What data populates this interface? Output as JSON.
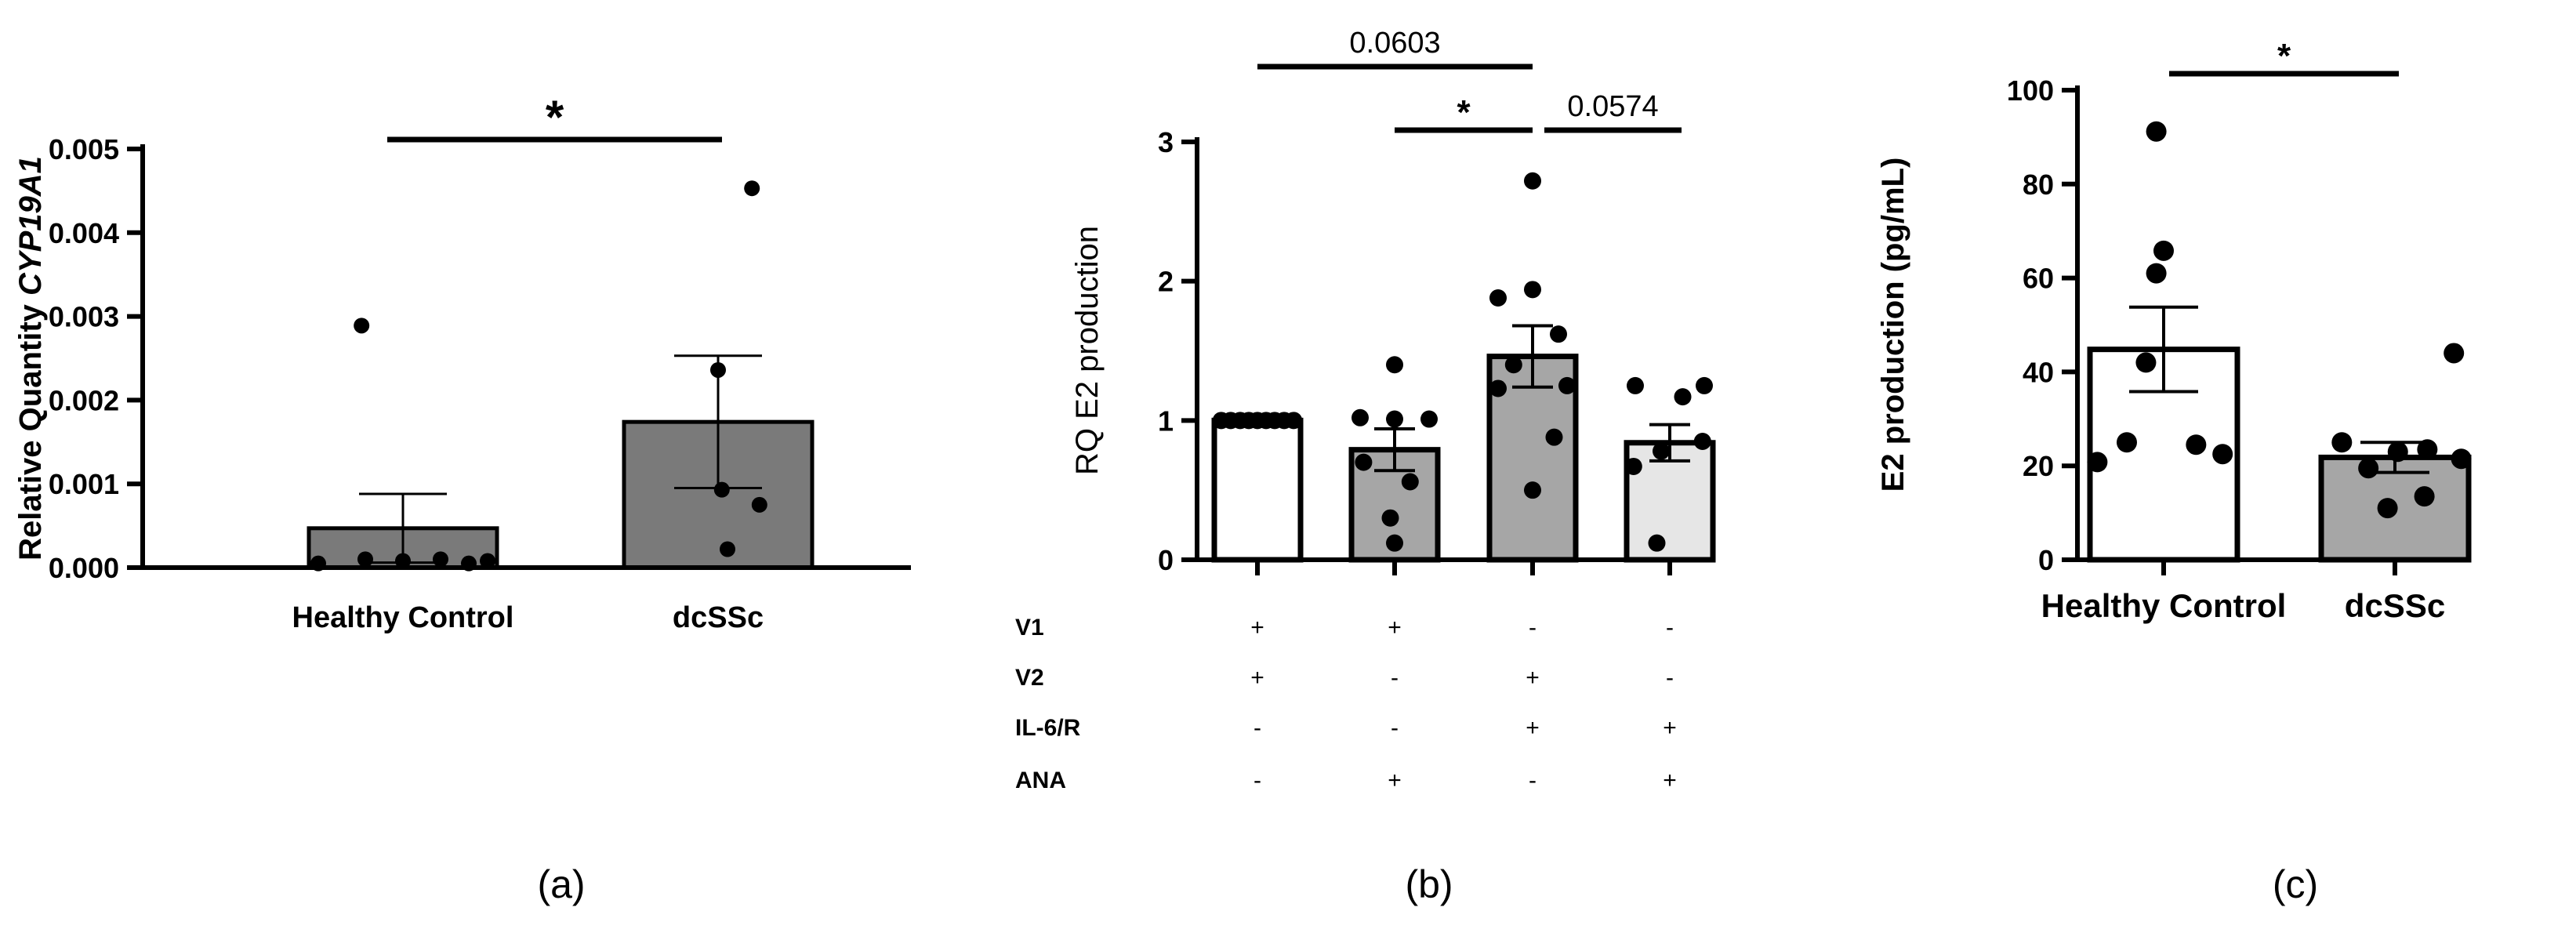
{
  "chart_data": [
    {
      "type": "bar",
      "panel_label": "(a)",
      "ylabel_prefix": "Relative Quantity ",
      "ylabel_gene": "CYP19A1",
      "xlabel": "",
      "categories": [
        "Healthy Control",
        "dcSSc"
      ],
      "values": [
        0.00047,
        0.00174
      ],
      "errors": [
        0.00041,
        0.00079
      ],
      "bar_colors": [
        "#7a7a7a",
        "#7a7a7a"
      ],
      "points": [
        [
          5e-05,
          0.0001,
          8e-05,
          0.0001,
          5e-05,
          8e-05,
          0.00289
        ],
        [
          0.00453,
          0.00236,
          0.00093,
          0.00075,
          0.00022
        ]
      ],
      "ylim": [
        0,
        0.005
      ],
      "yticks": [
        "0.000",
        "0.001",
        "0.002",
        "0.003",
        "0.004",
        "0.005"
      ],
      "significance": [
        {
          "from": 0,
          "to": 1,
          "label": "*"
        }
      ]
    },
    {
      "type": "bar",
      "panel_label": "(b)",
      "ylabel": "RQ E2 production",
      "xlabel": "",
      "categories": [
        "V1+V2",
        "V1+ANA",
        "V2+IL-6/R",
        "IL-6/R+ANA"
      ],
      "values": [
        1.0,
        0.79,
        1.46,
        0.84
      ],
      "errors": [
        0.0,
        0.15,
        0.22,
        0.13
      ],
      "bar_colors": [
        "#ffffff",
        "#a6a6a6",
        "#a6a6a6",
        "#e6e6e6"
      ],
      "points": [
        [
          1.0,
          1.0,
          1.0,
          1.0,
          1.0,
          1.0,
          1.0,
          1.0,
          1.0
        ],
        [
          1.4,
          1.02,
          1.01,
          1.01,
          0.7,
          0.56,
          0.3,
          0.12
        ],
        [
          2.72,
          1.94,
          1.88,
          1.62,
          1.4,
          1.25,
          1.23,
          0.88,
          0.5
        ],
        [
          1.25,
          1.25,
          1.17,
          0.85,
          0.78,
          0.67,
          0.12
        ]
      ],
      "ylim": [
        0,
        3
      ],
      "yticks": [
        "0",
        "1",
        "2",
        "3"
      ],
      "significance": [
        {
          "from": 0,
          "to": 2,
          "label": "0.0603"
        },
        {
          "from": 1,
          "to": 2,
          "label": "*"
        },
        {
          "from": 2,
          "to": 3,
          "label": "0.0574"
        }
      ],
      "conditions": [
        {
          "label": "V1",
          "values": [
            "+",
            "+",
            "-",
            "-"
          ]
        },
        {
          "label": "V2",
          "values": [
            "+",
            "-",
            "+",
            "-"
          ]
        },
        {
          "label": "IL-6/R",
          "values": [
            "-",
            "-",
            "+",
            "+"
          ]
        },
        {
          "label": "ANA",
          "values": [
            "-",
            "+",
            "-",
            "+"
          ]
        }
      ]
    },
    {
      "type": "bar",
      "panel_label": "(c)",
      "ylabel": "E2 production (pg/mL)",
      "xlabel": "",
      "categories": [
        "Healthy Control",
        "dcSSc"
      ],
      "values": [
        44.8,
        21.8
      ],
      "errors": [
        9.0,
        3.2
      ],
      "bar_colors": [
        "#ffffff",
        "#a6a6a6"
      ],
      "points": [
        [
          91.2,
          65.8,
          61.0,
          42.0,
          25.0,
          24.5,
          22.5,
          20.8
        ],
        [
          44.0,
          25.0,
          23.5,
          23.0,
          21.5,
          19.5,
          13.5,
          11.0
        ]
      ],
      "ylim": [
        0,
        100
      ],
      "yticks": [
        "0",
        "20",
        "40",
        "60",
        "80",
        "100"
      ],
      "significance": [
        {
          "from": 0,
          "to": 1,
          "label": "*"
        }
      ]
    }
  ]
}
